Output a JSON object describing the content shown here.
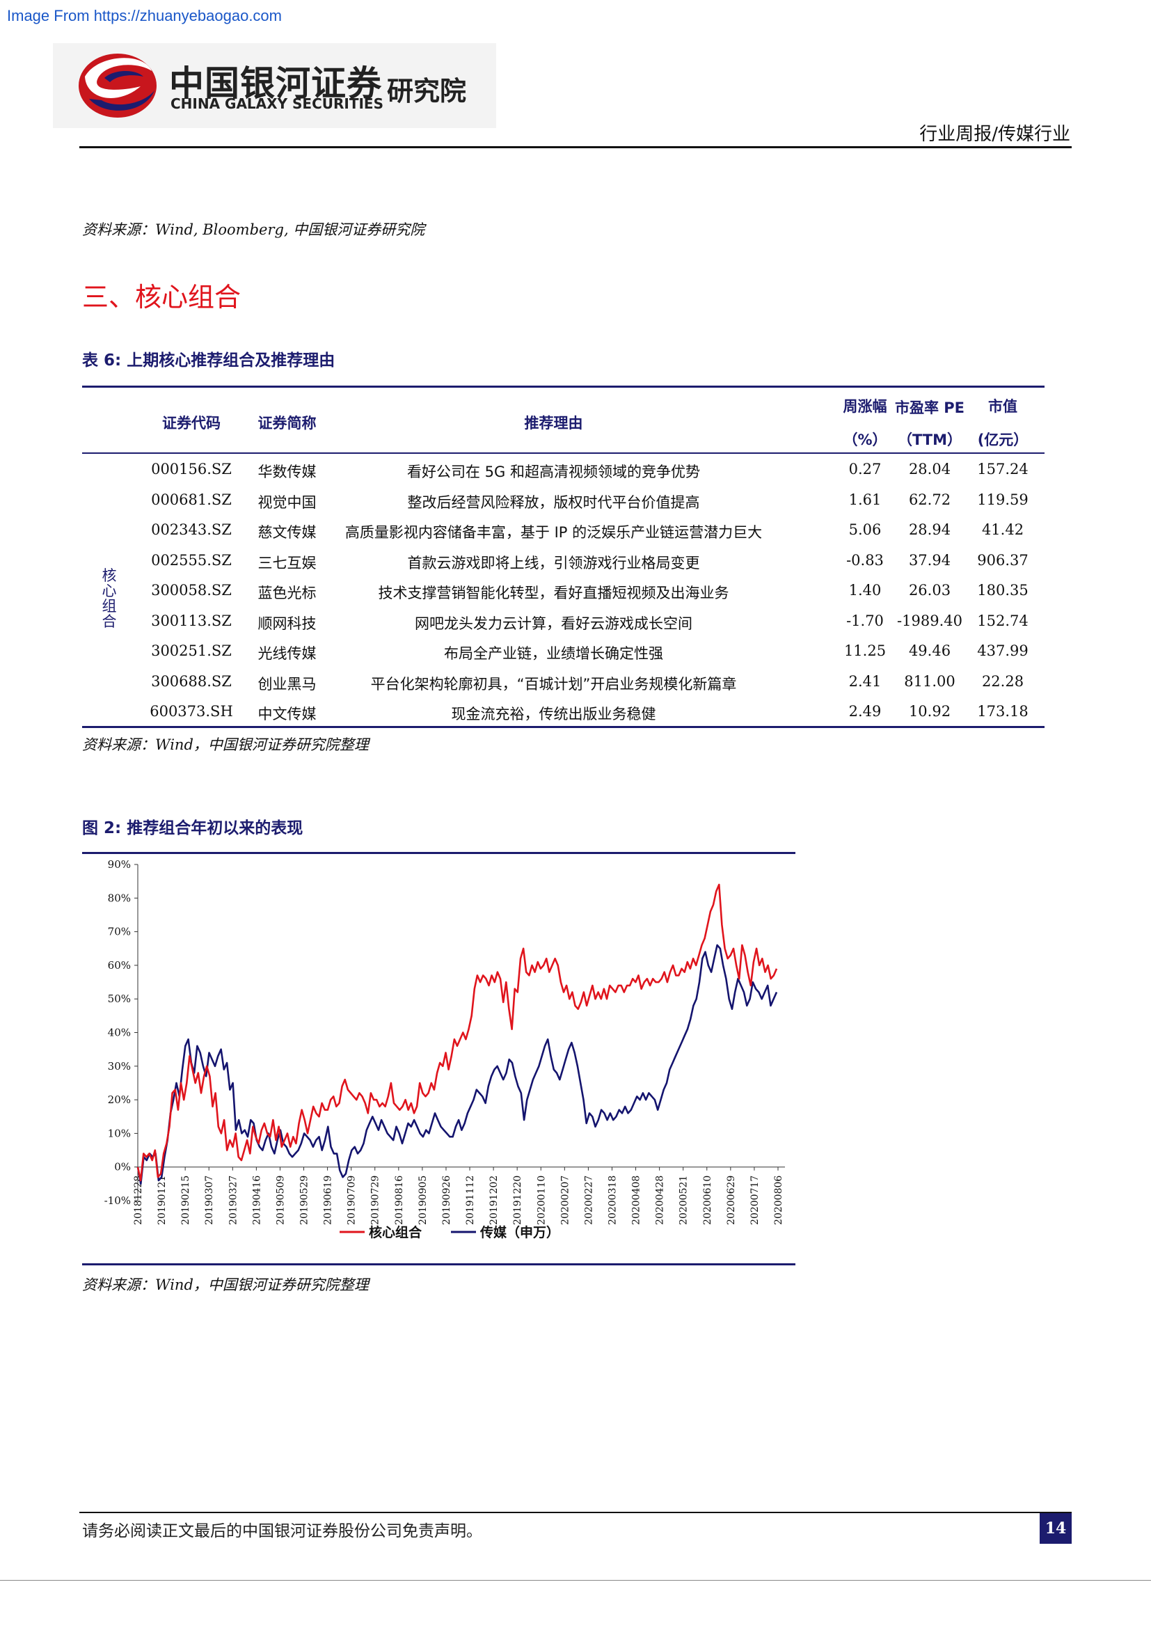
{
  "header": {
    "source_link": "Image From https://zhuanyebaogao.com",
    "logo_cn": "中国银河证券",
    "logo_en": "CHINA GALAXY SECURITIES",
    "logo_suffix": "研究院",
    "report_type": "行业周报/传媒行业"
  },
  "notes": {
    "source1": "资料来源：Wind, Bloomberg,  中国银河证券研究院",
    "source2": "资料来源：Wind，中国银河证券研究院整理",
    "source3": "资料来源：Wind，中国银河证券研究院整理"
  },
  "section_title": "三、核心组合",
  "table": {
    "caption": "表 6: 上期核心推荐组合及推荐理由",
    "headers": {
      "code": "证券代码",
      "name": "证券简称",
      "reason": "推荐理由",
      "change_l1": "周涨幅",
      "change_l2": "（%）",
      "pe_l1": "市盈率 PE",
      "pe_l2": "（TTM）",
      "mcap_l1": "市值",
      "mcap_l2": "(亿元）"
    },
    "group_label": "核心组合",
    "rows": [
      {
        "code": "000156.SZ",
        "name": "华数传媒",
        "reason": "看好公司在 5G 和超高清视频领域的竞争优势",
        "change": "0.27",
        "pe": "28.04",
        "mcap": "157.24"
      },
      {
        "code": "000681.SZ",
        "name": "视觉中国",
        "reason": "整改后经营风险释放，版权时代平台价值提高",
        "change": "1.61",
        "pe": "62.72",
        "mcap": "119.59"
      },
      {
        "code": "002343.SZ",
        "name": "慈文传媒",
        "reason": "高质量影视内容储备丰富，基于 IP 的泛娱乐产业链运营潜力巨大",
        "change": "5.06",
        "pe": "28.94",
        "mcap": "41.42"
      },
      {
        "code": "002555.SZ",
        "name": "三七互娱",
        "reason": "首款云游戏即将上线，引领游戏行业格局变更",
        "change": "-0.83",
        "pe": "37.94",
        "mcap": "906.37"
      },
      {
        "code": "300058.SZ",
        "name": "蓝色光标",
        "reason": "技术支撑营销智能化转型，看好直播短视频及出海业务",
        "change": "1.40",
        "pe": "26.03",
        "mcap": "180.35"
      },
      {
        "code": "300113.SZ",
        "name": "顺网科技",
        "reason": "网吧龙头发力云计算，看好云游戏成长空间",
        "change": "-1.70",
        "pe": "-1989.40",
        "mcap": "152.74"
      },
      {
        "code": "300251.SZ",
        "name": "光线传媒",
        "reason": "布局全产业链，业绩增长确定性强",
        "change": "11.25",
        "pe": "49.46",
        "mcap": "437.99"
      },
      {
        "code": "300688.SZ",
        "name": "创业黑马",
        "reason": "平台化架构轮廓初具，“百城计划”开启业务规模化新篇章",
        "change": "2.41",
        "pe": "811.00",
        "mcap": "22.28"
      },
      {
        "code": "600373.SH",
        "name": "中文传媒",
        "reason": "现金流充裕，传统出版业务稳健",
        "change": "2.49",
        "pe": "10.92",
        "mcap": "173.18"
      }
    ]
  },
  "figure": {
    "caption": "图 2: 推荐组合年初以来的表现"
  },
  "chart_data": {
    "type": "line",
    "title": "",
    "ylim": [
      -10,
      90
    ],
    "y_ticks": [
      "90%",
      "80%",
      "70%",
      "60%",
      "50%",
      "40%",
      "30%",
      "20%",
      "10%",
      "0%",
      "-10%"
    ],
    "x_ticks": [
      "20181228",
      "20190121",
      "20190215",
      "20190307",
      "20190327",
      "20190416",
      "20190509",
      "20190529",
      "20190619",
      "20190709",
      "20190729",
      "20190816",
      "20190905",
      "20190926",
      "20191112",
      "20191202",
      "20191220",
      "20200110",
      "20200207",
      "20200227",
      "20200318",
      "20200408",
      "20200428",
      "20200521",
      "20200610",
      "20200629",
      "20200717",
      "20200806"
    ],
    "legend": "bottom",
    "colors": {
      "core": "#e0141c",
      "media": "#14146e"
    },
    "series": [
      {
        "name": "核心组合",
        "values": [
          0,
          -4,
          4,
          3,
          4,
          2,
          5,
          -3,
          -2,
          4,
          7,
          12,
          22,
          23,
          17,
          25,
          20,
          25,
          33,
          29,
          25,
          28,
          22,
          27,
          30,
          27,
          18,
          22,
          12,
          10,
          14,
          5,
          8,
          6,
          10,
          3,
          2,
          5,
          8,
          4,
          12,
          9,
          7,
          11,
          13,
          10,
          9,
          14,
          8,
          12,
          6,
          8,
          10,
          6,
          9,
          7,
          13,
          17,
          14,
          10,
          14,
          18,
          16,
          15,
          19,
          17,
          17,
          20,
          21,
          18,
          19,
          24,
          26,
          23,
          22,
          21,
          20,
          22,
          21,
          19,
          16,
          22,
          20,
          20,
          18,
          19,
          18,
          21,
          25,
          19,
          18,
          17,
          18,
          20,
          17,
          19,
          16,
          18,
          25,
          22,
          21,
          22,
          25,
          23,
          28,
          31,
          30,
          34,
          29,
          33,
          38,
          36,
          38,
          40,
          38,
          41,
          45,
          53,
          57,
          55,
          57,
          56,
          54,
          57,
          55,
          58,
          56,
          49,
          55,
          47,
          41,
          53,
          52,
          62,
          65,
          58,
          57,
          60,
          58,
          61,
          59,
          60,
          62,
          58,
          60,
          62,
          60,
          55,
          52,
          54,
          50,
          52,
          48,
          47,
          49,
          52,
          48,
          51,
          54,
          50,
          52,
          50,
          53,
          50,
          54,
          53,
          52,
          54,
          54,
          52,
          54,
          54,
          56,
          55,
          57,
          53,
          55,
          56,
          54,
          56,
          55,
          55,
          56,
          58,
          55,
          58,
          60,
          57,
          57,
          59,
          58,
          61,
          59,
          62,
          60,
          63,
          66,
          68,
          72,
          76,
          78,
          82,
          84,
          72,
          65,
          62,
          63,
          65,
          60,
          56,
          66,
          63,
          58,
          54,
          61,
          65,
          60,
          62,
          58,
          60,
          56,
          57,
          59
        ]
      },
      {
        "name": "传媒（申万）",
        "values": [
          0,
          -5,
          3,
          2,
          4,
          3,
          4,
          -4,
          -3,
          3,
          8,
          16,
          20,
          25,
          21,
          29,
          36,
          38,
          31,
          28,
          36,
          34,
          30,
          27,
          34,
          32,
          30,
          33,
          35,
          29,
          31,
          23,
          25,
          11,
          14,
          10,
          11,
          9,
          14,
          13,
          8,
          6,
          5,
          8,
          10,
          6,
          4,
          8,
          11,
          7,
          6,
          4,
          3,
          4,
          5,
          7,
          10,
          9,
          8,
          6,
          8,
          9,
          5,
          8,
          12,
          6,
          4,
          4,
          -1,
          -3,
          -2,
          2,
          5,
          6,
          4,
          5,
          7,
          11,
          13,
          15,
          13,
          11,
          14,
          12,
          10,
          9,
          8,
          12,
          10,
          7,
          10,
          13,
          12,
          14,
          12,
          10,
          9,
          11,
          10,
          13,
          16,
          14,
          12,
          11,
          10,
          9,
          9,
          12,
          14,
          11,
          13,
          16,
          18,
          20,
          23,
          22,
          21,
          19,
          24,
          27,
          29,
          30,
          28,
          26,
          28,
          32,
          31,
          27,
          24,
          22,
          14,
          20,
          23,
          26,
          28,
          30,
          33,
          36,
          38,
          33,
          29,
          28,
          26,
          29,
          32,
          35,
          37,
          34,
          30,
          25,
          20,
          13,
          16,
          15,
          12,
          14,
          17,
          16,
          14,
          16,
          14,
          15,
          17,
          16,
          18,
          16,
          17,
          19,
          21,
          20,
          22,
          20,
          22,
          21,
          20,
          17,
          20,
          23,
          25,
          29,
          31,
          33,
          35,
          37,
          39,
          41,
          44,
          48,
          50,
          55,
          62,
          64,
          60,
          58,
          62,
          66,
          65,
          60,
          56,
          50,
          47,
          52,
          56,
          54,
          52,
          48,
          50,
          55,
          53,
          52,
          50,
          52,
          54,
          48,
          50,
          52
        ]
      }
    ]
  },
  "footer": {
    "disclaimer": "请务必阅读正文最后的中国银河证券股份公司免责声明。",
    "page_number": "14"
  }
}
